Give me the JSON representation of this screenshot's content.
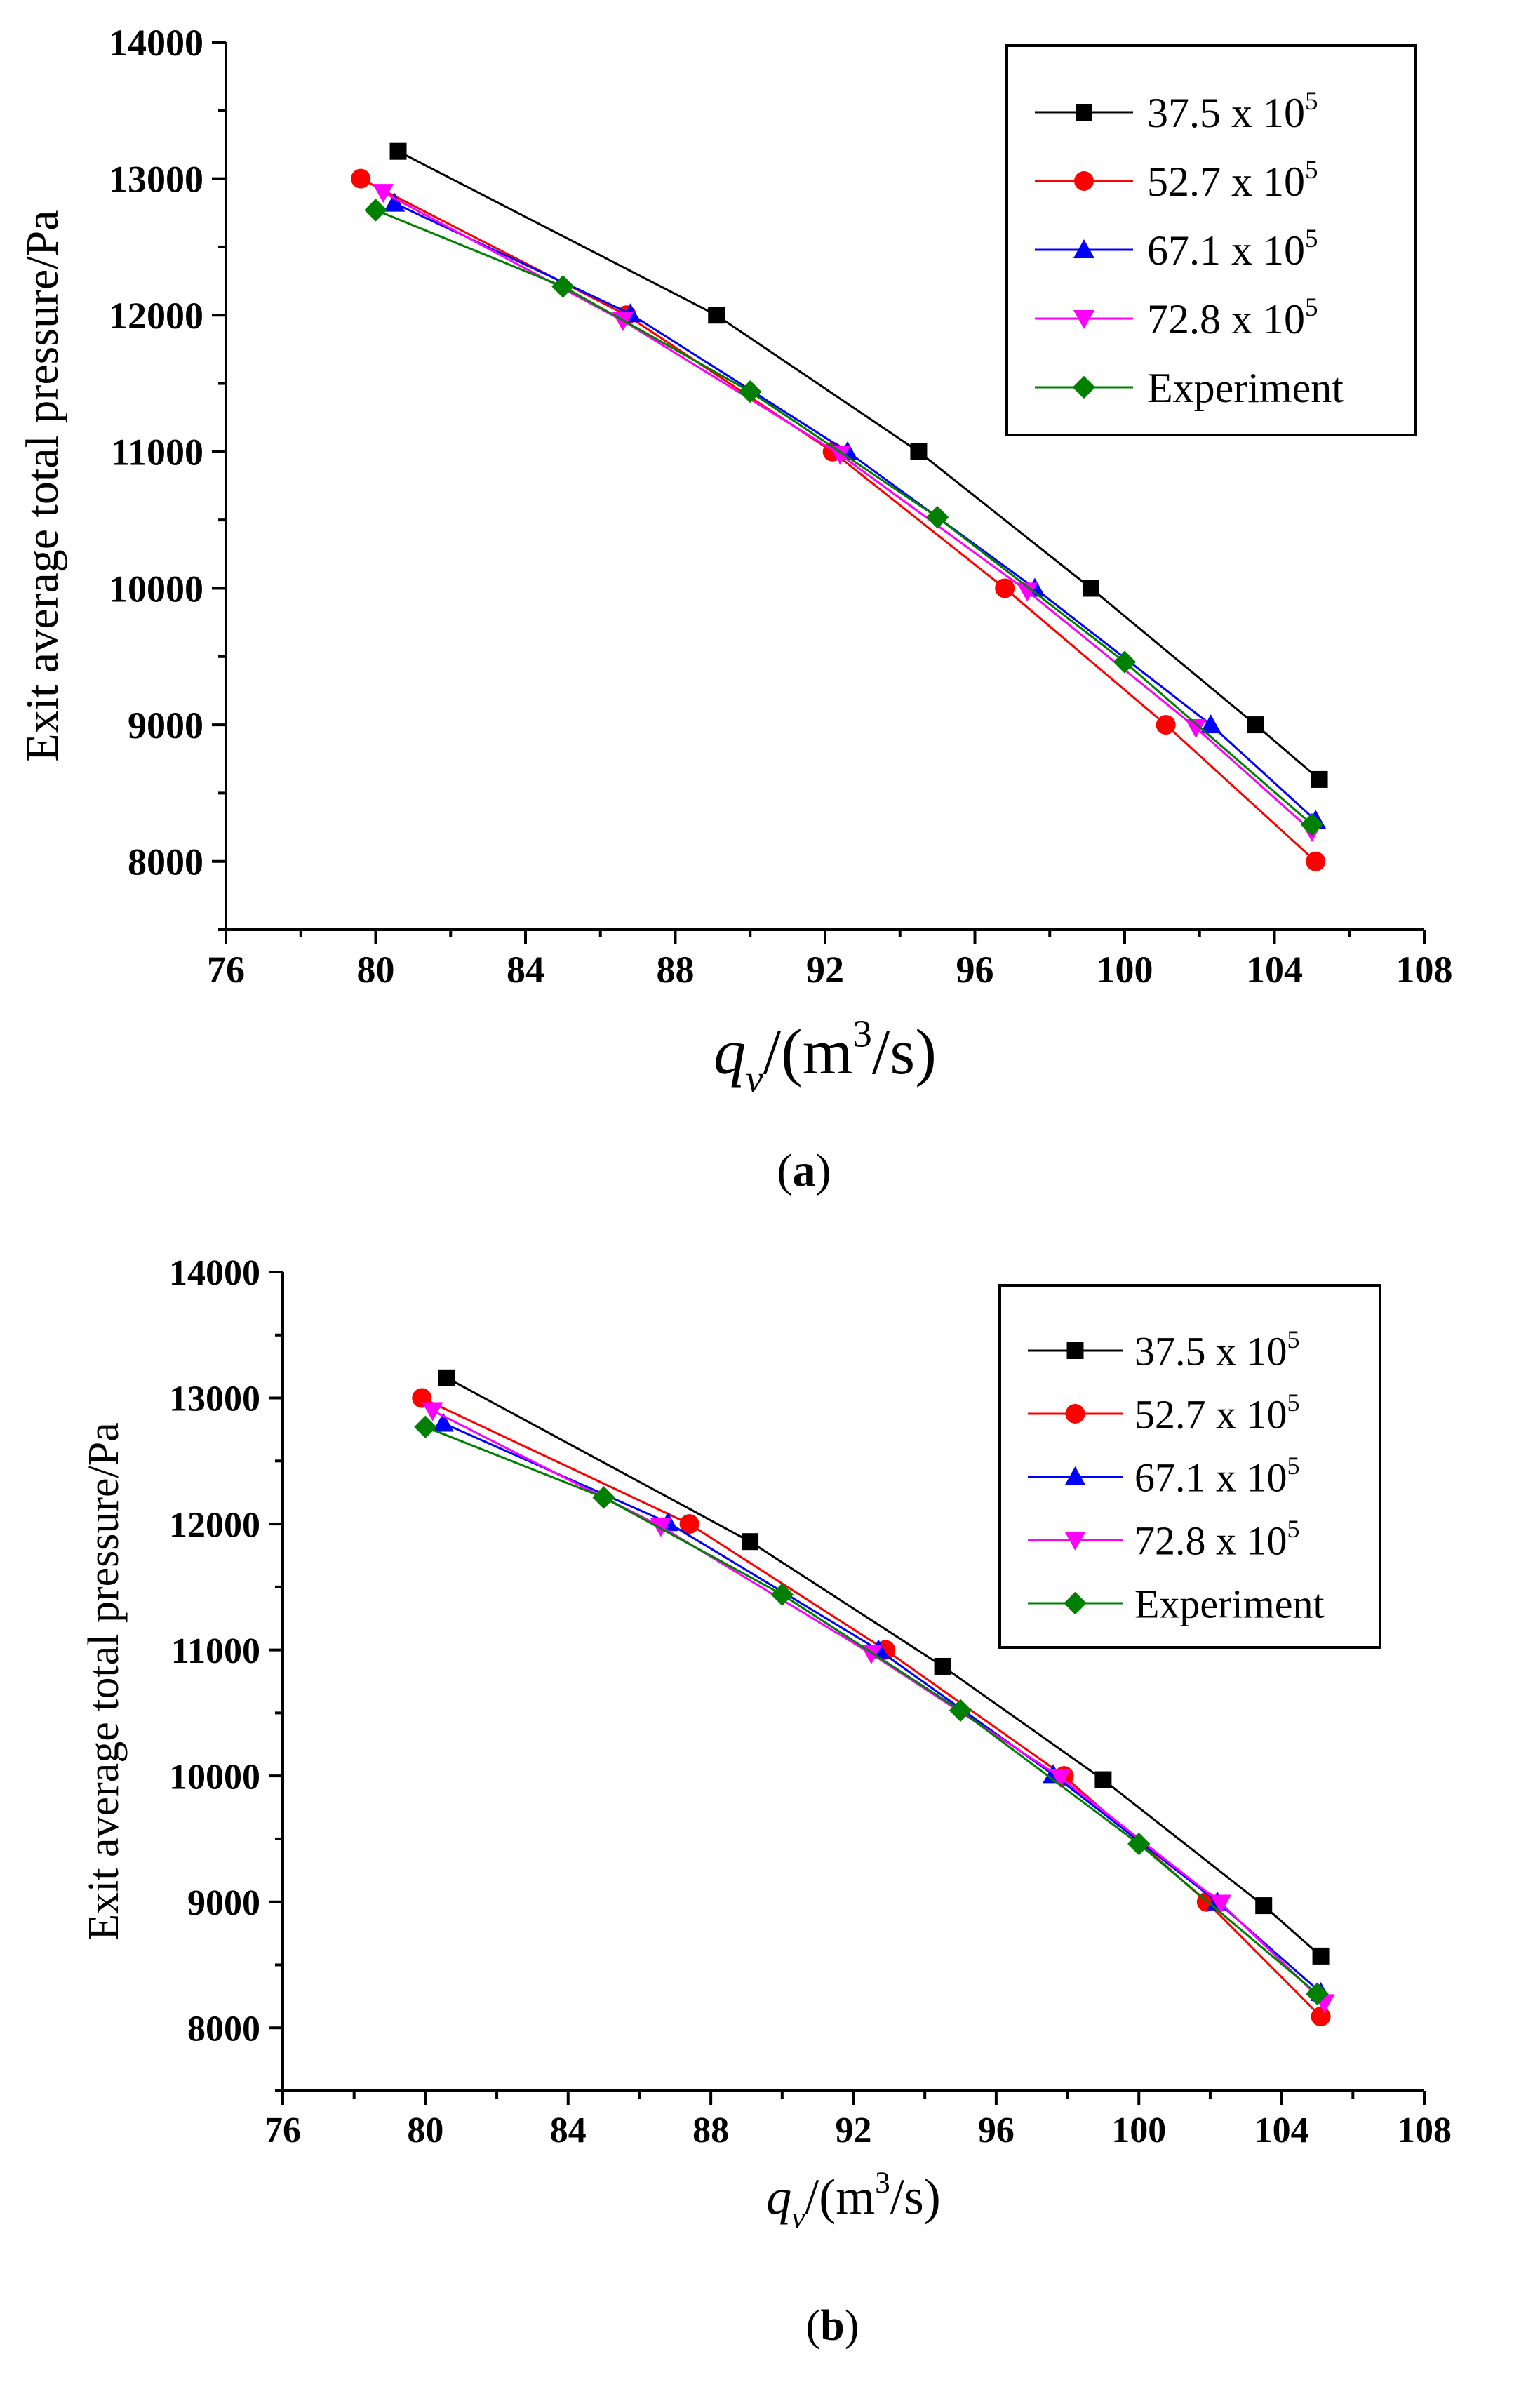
{
  "chart_data": [
    {
      "type": "line",
      "panel_label": "a",
      "title": "",
      "xlabel": {
        "q": "q",
        "sub": "v",
        "pre": "/(m",
        "sup": "3",
        "post": "/s)"
      },
      "ylabel": "Exit average total pressure/Pa",
      "xlim": [
        76,
        108
      ],
      "ylim": [
        7500,
        14000
      ],
      "xticks": [
        "76",
        "80",
        "84",
        "88",
        "92",
        "96",
        "100",
        "104",
        "108"
      ],
      "yticks": [
        "8000",
        "9000",
        "10000",
        "11000",
        "12000",
        "13000",
        "14000"
      ],
      "legend_position": "top-right",
      "series": [
        {
          "name": "37.5 x 10",
          "exp": "5",
          "color": "#000000",
          "marker": "square",
          "x": [
            80.6,
            89.1,
            94.5,
            99.1,
            103.5,
            105.2
          ],
          "y": [
            13200,
            12000,
            11000,
            10000,
            9000,
            8600
          ]
        },
        {
          "name": "52.7 x 10",
          "exp": "5",
          "color": "#ff0000",
          "marker": "circle",
          "x": [
            79.6,
            86.7,
            92.2,
            96.8,
            101.1,
            105.1
          ],
          "y": [
            13000,
            12000,
            11000,
            10000,
            9000,
            8000
          ]
        },
        {
          "name": "67.1 x 10",
          "exp": "5",
          "color": "#0000ff",
          "marker": "triangle-up",
          "x": [
            80.5,
            86.8,
            92.6,
            97.6,
            102.3,
            105.1
          ],
          "y": [
            12820,
            12010,
            11000,
            10000,
            9000,
            8300
          ]
        },
        {
          "name": "72.8 x 10",
          "exp": "5",
          "color": "#ff00ff",
          "marker": "triangle-down",
          "x": [
            80.2,
            86.6,
            92.4,
            97.4,
            101.9,
            105.0
          ],
          "y": [
            12900,
            11960,
            10980,
            9980,
            8980,
            8220
          ]
        },
        {
          "name": "Experiment",
          "exp": "",
          "color": "#008000",
          "marker": "diamond",
          "x": [
            80.0,
            85.0,
            90.0,
            95.0,
            100.0,
            105.0
          ],
          "y": [
            12770,
            12210,
            11440,
            10520,
            9460,
            8270
          ]
        }
      ]
    },
    {
      "type": "line",
      "panel_label": "b",
      "title": "",
      "xlabel": {
        "q": "q",
        "sub": "v",
        "pre": "/(m",
        "sup": "3",
        "post": "/s)"
      },
      "ylabel": "Exit average total pressure/Pa",
      "xlim": [
        76,
        108
      ],
      "ylim": [
        7500,
        14000
      ],
      "xticks": [
        "76",
        "80",
        "84",
        "88",
        "92",
        "96",
        "100",
        "104",
        "108"
      ],
      "yticks": [
        "8000",
        "9000",
        "10000",
        "11000",
        "12000",
        "13000",
        "14000"
      ],
      "legend_position": "top-right",
      "series": [
        {
          "name": "37.5 x 10",
          "exp": "5",
          "color": "#000000",
          "marker": "square",
          "x": [
            80.6,
            89.1,
            94.5,
            99.0,
            103.5,
            105.1
          ],
          "y": [
            13160,
            11860,
            10870,
            9970,
            8970,
            8570
          ]
        },
        {
          "name": "52.7 x 10",
          "exp": "5",
          "color": "#ff0000",
          "marker": "circle",
          "x": [
            79.9,
            87.4,
            92.9,
            97.9,
            101.9,
            105.1
          ],
          "y": [
            13000,
            12000,
            11000,
            10000,
            9000,
            8090
          ]
        },
        {
          "name": "67.1 x 10",
          "exp": "5",
          "color": "#0000ff",
          "marker": "triangle-up",
          "x": [
            80.5,
            86.8,
            92.7,
            97.6,
            102.2,
            105.1
          ],
          "y": [
            12800,
            12010,
            11000,
            10010,
            9000,
            8280
          ]
        },
        {
          "name": "72.8 x 10",
          "exp": "5",
          "color": "#ff00ff",
          "marker": "triangle-down",
          "x": [
            80.2,
            86.6,
            92.5,
            97.8,
            102.3,
            105.2
          ],
          "y": [
            12900,
            11980,
            10970,
            9990,
            8990,
            8200
          ]
        },
        {
          "name": "Experiment",
          "exp": "",
          "color": "#008000",
          "marker": "diamond",
          "x": [
            80.0,
            85.0,
            90.0,
            95.0,
            100.0,
            105.0
          ],
          "y": [
            12770,
            12210,
            11440,
            10520,
            9460,
            8270
          ]
        }
      ]
    }
  ]
}
